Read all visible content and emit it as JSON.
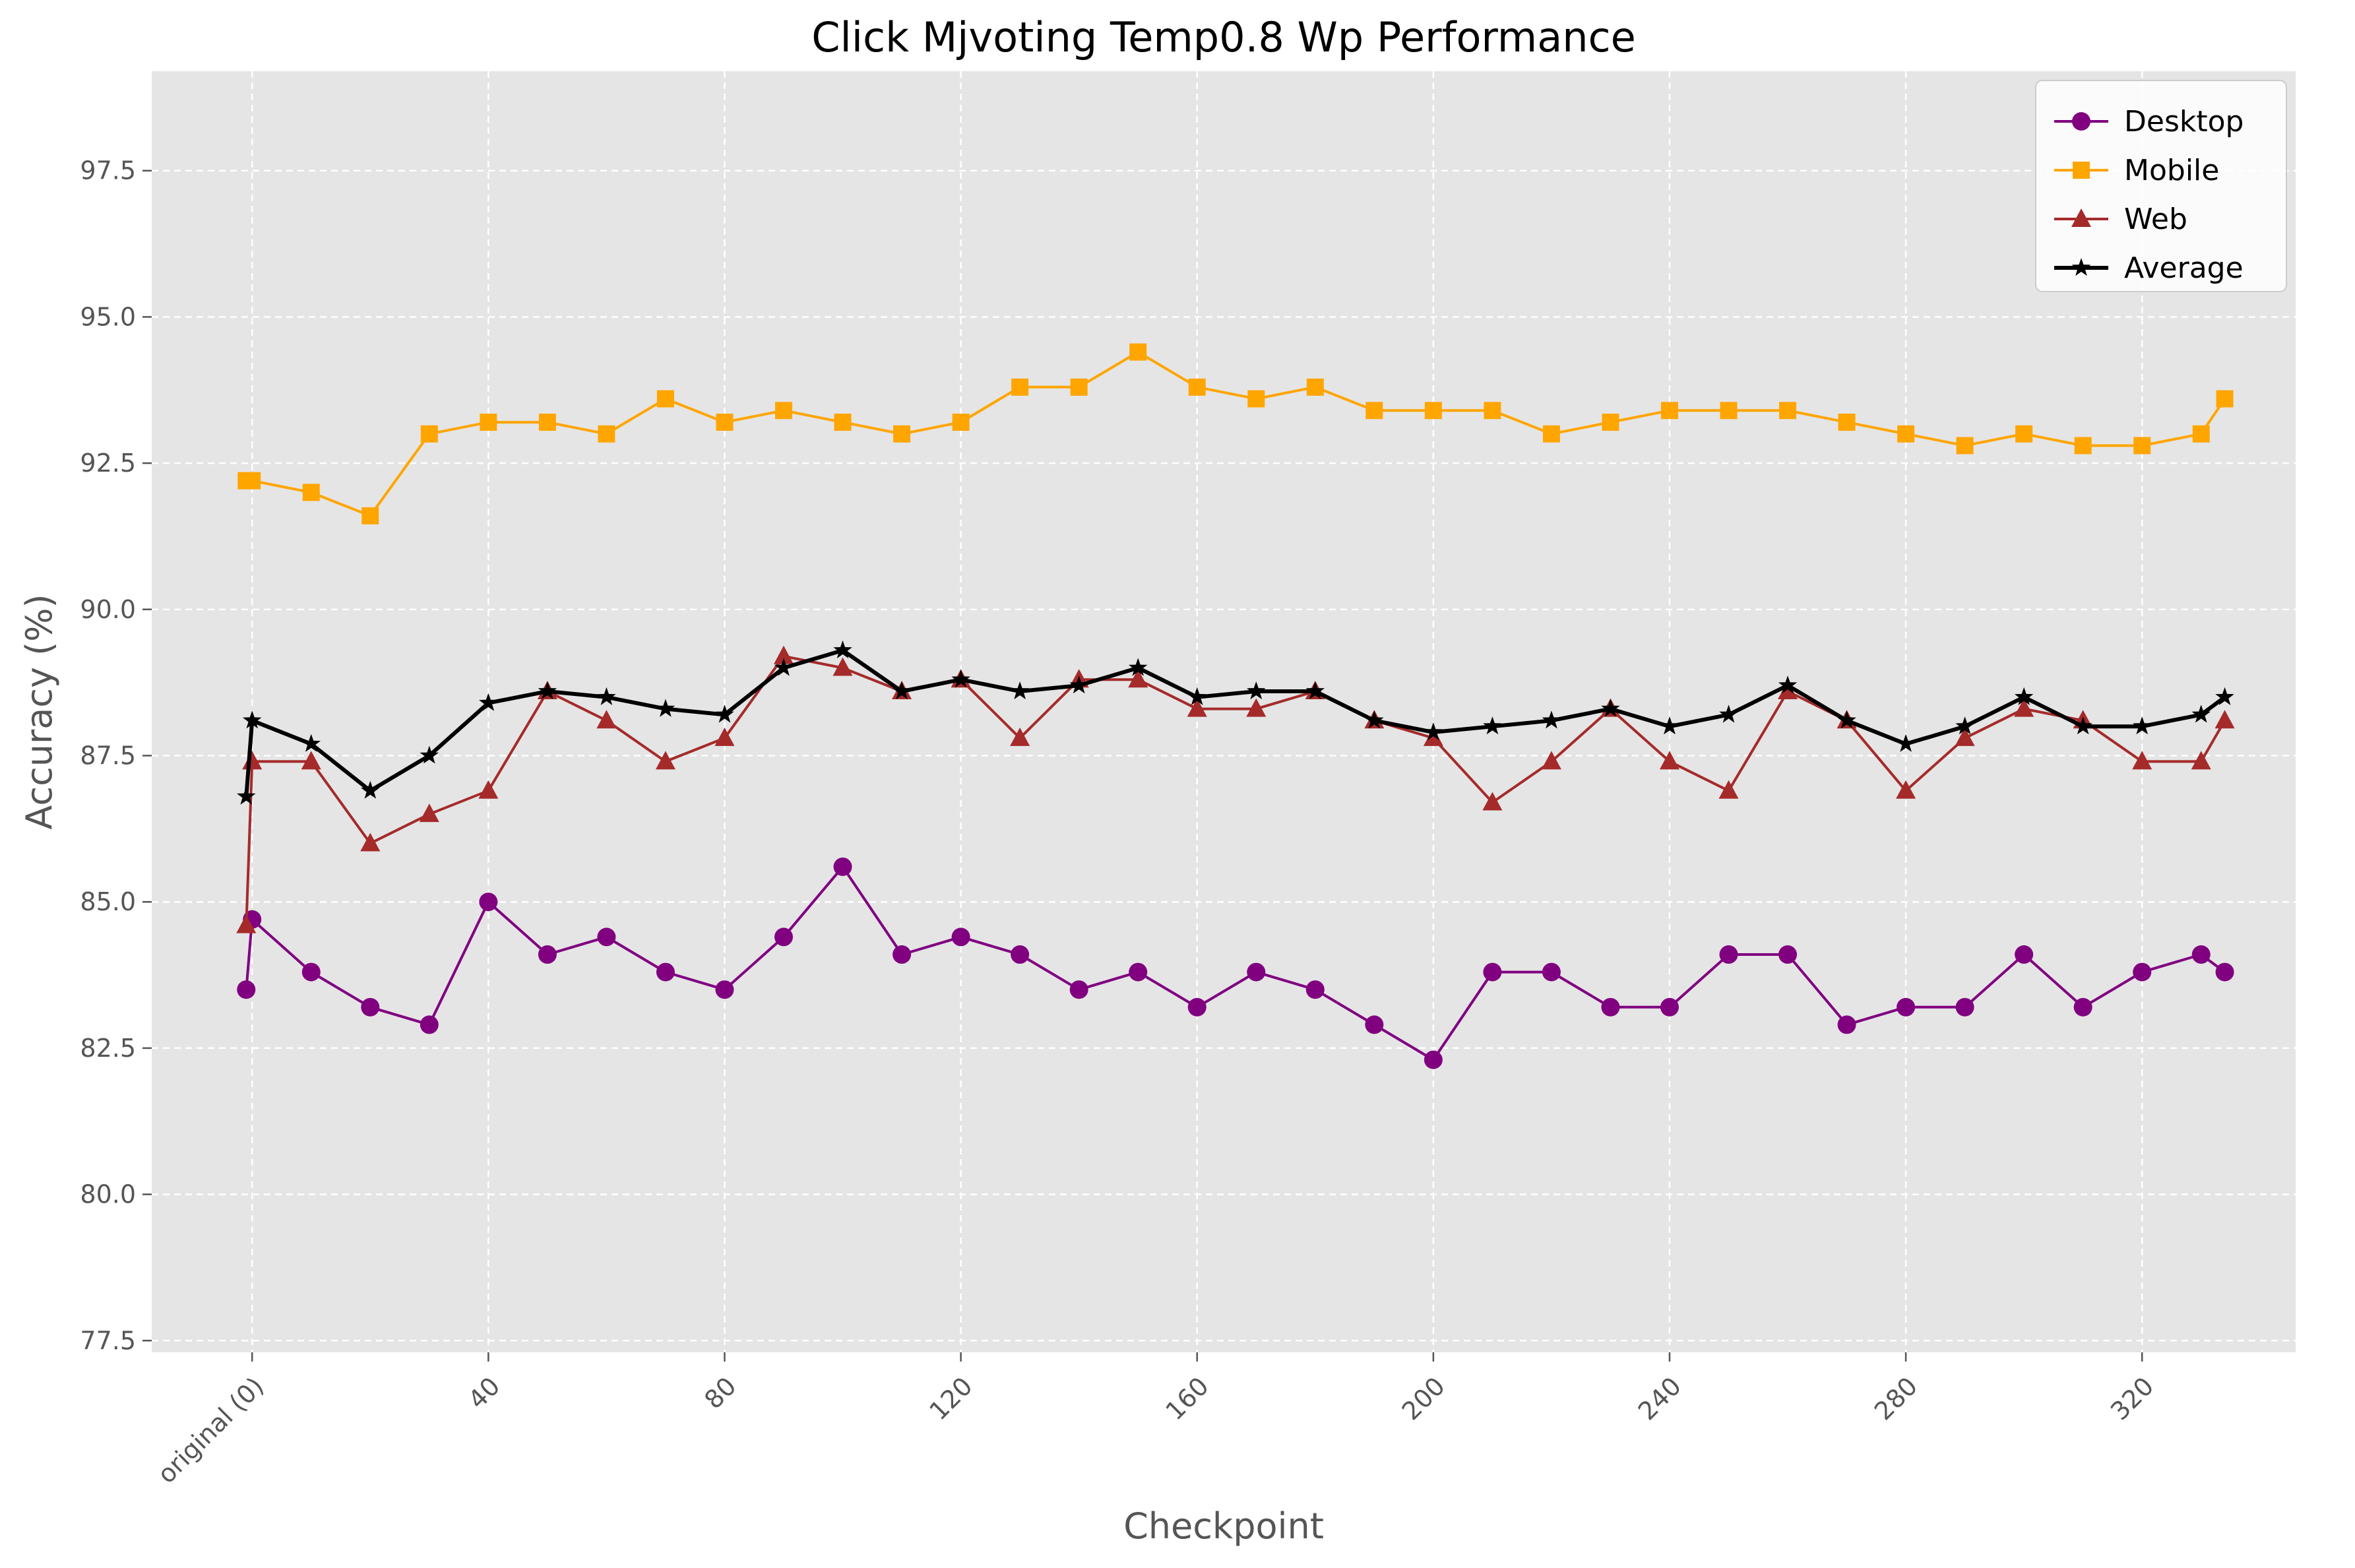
{
  "chart_data": {
    "type": "line",
    "title": "Click Mjvoting Temp0.8 Wp Performance",
    "xlabel": "Checkpoint",
    "ylabel": "Accuracy (%)",
    "xlim": [
      -17,
      346
    ],
    "ylim": [
      77.3,
      99.2
    ],
    "grid": true,
    "legend_position": "top-right",
    "x_ticks": [
      {
        "value": 0,
        "label": "original (0)"
      },
      {
        "value": 40,
        "label": "40"
      },
      {
        "value": 80,
        "label": "80"
      },
      {
        "value": 120,
        "label": "120"
      },
      {
        "value": 160,
        "label": "160"
      },
      {
        "value": 200,
        "label": "200"
      },
      {
        "value": 240,
        "label": "240"
      },
      {
        "value": 280,
        "label": "280"
      },
      {
        "value": 320,
        "label": "320"
      }
    ],
    "y_ticks": [
      {
        "value": 77.5,
        "label": "77.5"
      },
      {
        "value": 80.0,
        "label": "80.0"
      },
      {
        "value": 82.5,
        "label": "82.5"
      },
      {
        "value": 85.0,
        "label": "85.0"
      },
      {
        "value": 87.5,
        "label": "87.5"
      },
      {
        "value": 90.0,
        "label": "90.0"
      },
      {
        "value": 92.5,
        "label": "92.5"
      },
      {
        "value": 95.0,
        "label": "95.0"
      },
      {
        "value": 97.5,
        "label": "97.5"
      }
    ],
    "x": [
      -1,
      0,
      10,
      20,
      30,
      40,
      50,
      60,
      70,
      80,
      90,
      100,
      110,
      120,
      130,
      140,
      150,
      160,
      170,
      180,
      190,
      200,
      210,
      220,
      230,
      240,
      250,
      260,
      270,
      280,
      290,
      300,
      310,
      320,
      330,
      334
    ],
    "series": [
      {
        "name": "Desktop",
        "color": "#800080",
        "marker": "circle",
        "values": [
          83.5,
          84.7,
          83.8,
          83.2,
          82.9,
          85.0,
          84.1,
          84.4,
          83.8,
          83.5,
          84.4,
          85.6,
          84.1,
          84.4,
          84.1,
          83.5,
          83.8,
          83.2,
          83.8,
          83.5,
          82.9,
          82.3,
          83.8,
          83.8,
          83.2,
          83.2,
          84.1,
          84.1,
          82.9,
          83.2,
          83.2,
          84.1,
          83.2,
          83.8,
          84.1,
          83.8
        ]
      },
      {
        "name": "Mobile",
        "color": "#ffa500",
        "marker": "square",
        "values": [
          92.2,
          92.2,
          92.0,
          91.6,
          93.0,
          93.2,
          93.2,
          93.0,
          93.6,
          93.2,
          93.4,
          93.2,
          93.0,
          93.2,
          93.8,
          93.8,
          94.4,
          93.8,
          93.6,
          93.8,
          93.4,
          93.4,
          93.4,
          93.0,
          93.2,
          93.4,
          93.4,
          93.4,
          93.2,
          93.0,
          92.8,
          93.0,
          92.8,
          92.8,
          93.0,
          93.6
        ]
      },
      {
        "name": "Web",
        "color": "#a52a2a",
        "marker": "triangle",
        "values": [
          84.6,
          87.4,
          87.4,
          86.0,
          86.5,
          86.9,
          88.6,
          88.1,
          87.4,
          87.8,
          89.2,
          89.0,
          88.6,
          88.8,
          87.8,
          88.8,
          88.8,
          88.3,
          88.3,
          88.6,
          88.1,
          87.8,
          86.7,
          87.4,
          88.3,
          87.4,
          86.9,
          88.6,
          88.1,
          86.9,
          87.8,
          88.3,
          88.1,
          87.4,
          87.4,
          88.1
        ]
      },
      {
        "name": "Average",
        "color": "#000000",
        "marker": "star",
        "values": [
          86.8,
          88.1,
          87.7,
          86.9,
          87.5,
          88.4,
          88.6,
          88.5,
          88.3,
          88.2,
          89.0,
          89.3,
          88.6,
          88.8,
          88.6,
          88.7,
          89.0,
          88.5,
          88.6,
          88.6,
          88.1,
          87.9,
          88.0,
          88.1,
          88.3,
          88.0,
          88.2,
          88.7,
          88.1,
          87.7,
          88.0,
          88.5,
          88.0,
          88.0,
          88.2,
          88.5
        ]
      }
    ]
  }
}
